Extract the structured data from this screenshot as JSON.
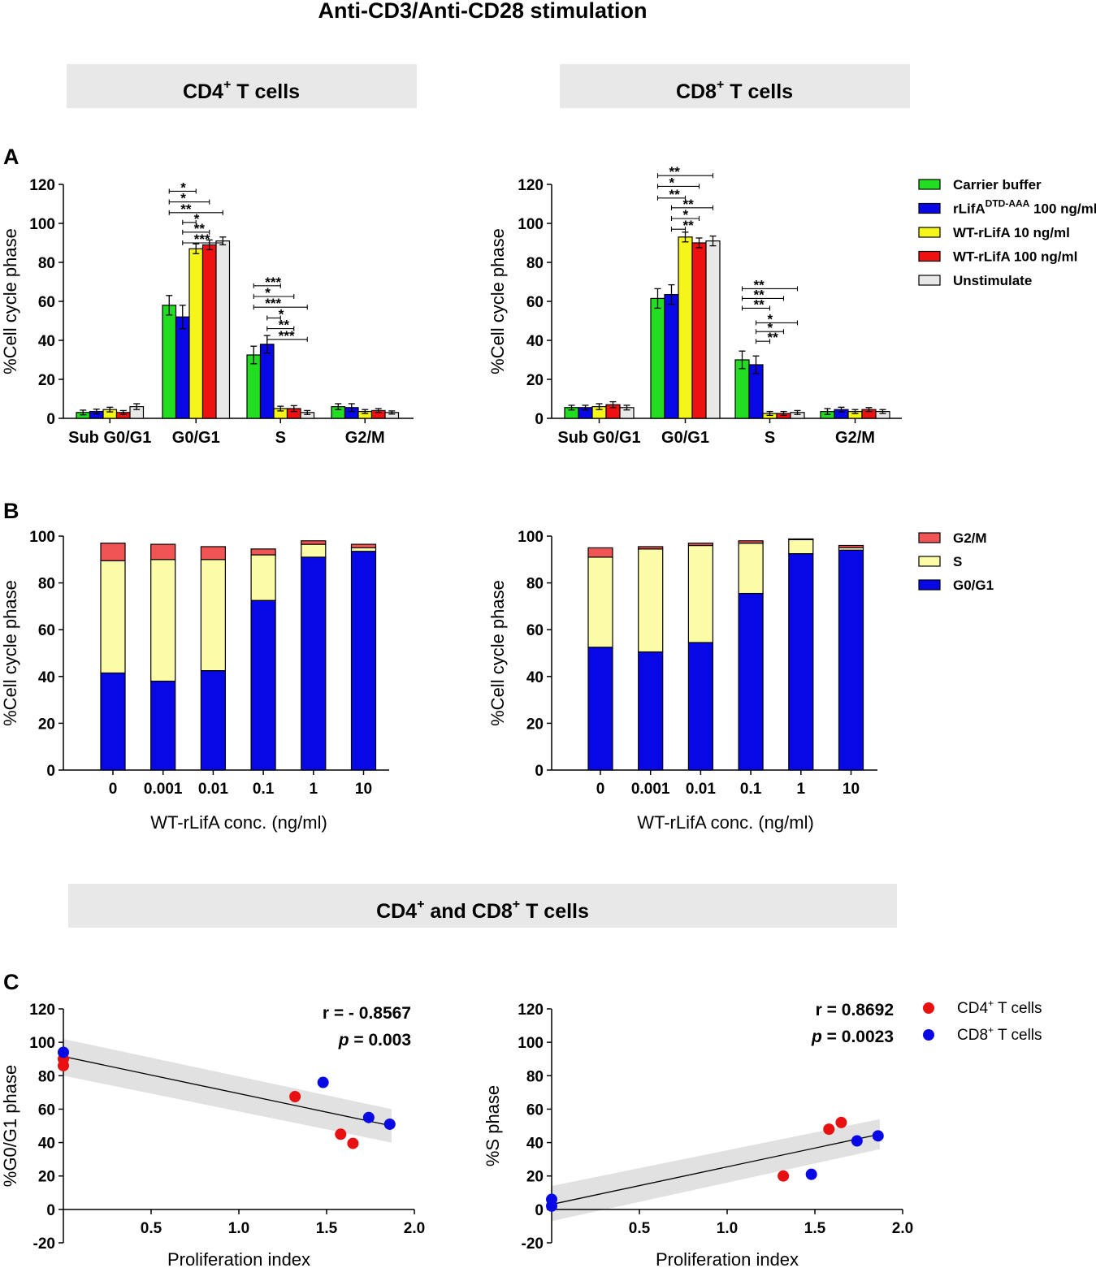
{
  "figure": {
    "main_title": "Anti-CD3/Anti-CD28 stimulation",
    "headers": {
      "cd4": {
        "main": "CD4",
        "sup": "+",
        "rest": " T cells"
      },
      "cd8": {
        "main": "CD8",
        "sup": "+",
        "rest": " T cells"
      },
      "both": {
        "a": "CD4",
        "sup1": "+",
        "b": " and CD8",
        "sup2": "+",
        "c": " T cells"
      }
    },
    "panel_letters": [
      "A",
      "B",
      "C"
    ],
    "colors": {
      "green": "#22dd22",
      "blue": "#0808e6",
      "yellow": "#f5f51a",
      "red": "#ee1111",
      "light_gray": "#e8e8e8",
      "header_bg": "#e8e8e8",
      "stack_red": "#f05454",
      "stack_yellow": "#fbfba8",
      "scatter_red": "#e81010"
    }
  },
  "chart_data": [
    {
      "id": "A-CD4",
      "type": "bar",
      "ylabel": "%Cell cycle phase",
      "ylim": [
        0,
        120
      ],
      "yticks": [
        0,
        20,
        40,
        60,
        80,
        100,
        120
      ],
      "categories": [
        "Sub G0/G1",
        "G0/G1",
        "S",
        "G2/M"
      ],
      "series": [
        {
          "name": "Carrier buffer",
          "values": [
            3,
            58,
            32.5,
            6
          ],
          "errors": [
            1.2,
            5,
            4.5,
            1.5
          ]
        },
        {
          "name": "rLifA DTD-AAA 100 ng/ml",
          "values": [
            3.5,
            52,
            38,
            5.5
          ],
          "errors": [
            1.2,
            6,
            4.5,
            2
          ]
        },
        {
          "name": "WT-rLifA 10 ng/ml",
          "values": [
            4.5,
            87,
            5,
            3.5
          ],
          "errors": [
            1.2,
            2.5,
            1.2,
            1
          ]
        },
        {
          "name": "WT-rLifA 100 ng/ml",
          "values": [
            3,
            89,
            5,
            4
          ],
          "errors": [
            1,
            2.5,
            1.5,
            1
          ]
        },
        {
          "name": "Unstimulate",
          "values": [
            6,
            91,
            3,
            3
          ],
          "errors": [
            1.5,
            2,
            1,
            0.8
          ]
        }
      ],
      "significance": [
        {
          "category": 1,
          "from": 0,
          "to": 2,
          "label": "*",
          "level": 116.5
        },
        {
          "category": 1,
          "from": 0,
          "to": 3,
          "label": "*",
          "level": 111
        },
        {
          "category": 1,
          "from": 0,
          "to": 4,
          "label": "**",
          "level": 105.5
        },
        {
          "category": 1,
          "from": 1,
          "to": 2,
          "label": "*",
          "level": 100.5
        },
        {
          "category": 1,
          "from": 1,
          "to": 3,
          "label": "**",
          "level": 95.5
        },
        {
          "category": 1,
          "from": 1,
          "to": 4,
          "label": "***",
          "level": 90
        },
        {
          "category": 2,
          "from": 0,
          "to": 2,
          "label": "***",
          "level": 68
        },
        {
          "category": 2,
          "from": 0,
          "to": 3,
          "label": "*",
          "level": 62.5
        },
        {
          "category": 2,
          "from": 0,
          "to": 4,
          "label": "***",
          "level": 57
        },
        {
          "category": 2,
          "from": 1,
          "to": 2,
          "label": "*",
          "level": 51.5
        },
        {
          "category": 2,
          "from": 1,
          "to": 3,
          "label": "**",
          "level": 46
        },
        {
          "category": 2,
          "from": 1,
          "to": 4,
          "label": "***",
          "level": 40.5
        }
      ]
    },
    {
      "id": "A-CD8",
      "type": "bar",
      "ylabel": "%Cell cycle phase",
      "ylim": [
        0,
        120
      ],
      "yticks": [
        0,
        20,
        40,
        60,
        80,
        100,
        120
      ],
      "categories": [
        "Sub G0/G1",
        "G0/G1",
        "S",
        "G2/M"
      ],
      "series": [
        {
          "name": "Carrier buffer",
          "values": [
            5.5,
            61.5,
            30,
            3.5
          ],
          "errors": [
            1.2,
            5,
            4.5,
            1.5
          ]
        },
        {
          "name": "rLifA DTD-AAA 100 ng/ml",
          "values": [
            5.5,
            63.5,
            27.5,
            4.5
          ],
          "errors": [
            1.2,
            5,
            4.5,
            1.2
          ]
        },
        {
          "name": "WT-rLifA 10 ng/ml",
          "values": [
            6,
            93,
            2.5,
            3.5
          ],
          "errors": [
            1.5,
            2.5,
            1,
            1
          ]
        },
        {
          "name": "WT-rLifA 100 ng/ml",
          "values": [
            7,
            90,
            2.5,
            4.5
          ],
          "errors": [
            1.5,
            2.5,
            1,
            1
          ]
        },
        {
          "name": "Unstimulate",
          "values": [
            5.5,
            91,
            3,
            3.5
          ],
          "errors": [
            1.2,
            2.5,
            1,
            1
          ]
        }
      ],
      "significance": [
        {
          "category": 1,
          "from": 0,
          "to": 4,
          "label": "**",
          "level": 124.5
        },
        {
          "category": 1,
          "from": 0,
          "to": 3,
          "label": "*",
          "level": 119
        },
        {
          "category": 1,
          "from": 0,
          "to": 2,
          "label": "**",
          "level": 113
        },
        {
          "category": 1,
          "from": 1,
          "to": 4,
          "label": "**",
          "level": 108
        },
        {
          "category": 1,
          "from": 1,
          "to": 3,
          "label": "*",
          "level": 102.5
        },
        {
          "category": 1,
          "from": 1,
          "to": 2,
          "label": "**",
          "level": 97
        },
        {
          "category": 2,
          "from": 0,
          "to": 4,
          "label": "**",
          "level": 66.5
        },
        {
          "category": 2,
          "from": 0,
          "to": 3,
          "label": "**",
          "level": 61.5
        },
        {
          "category": 2,
          "from": 0,
          "to": 2,
          "label": "**",
          "level": 56.5
        },
        {
          "category": 2,
          "from": 1,
          "to": 4,
          "label": "*",
          "level": 49
        },
        {
          "category": 2,
          "from": 1,
          "to": 3,
          "label": "*",
          "level": 44.5
        },
        {
          "category": 2,
          "from": 1,
          "to": 2,
          "label": "**",
          "level": 39.5
        }
      ]
    },
    {
      "id": "B-CD4",
      "type": "bar",
      "stacked": true,
      "ylabel": "%Cell cycle phase",
      "xlabel": "WT-rLifA conc. (ng/ml)",
      "ylim": [
        0,
        100
      ],
      "yticks": [
        0,
        20,
        40,
        60,
        80,
        100
      ],
      "categories": [
        "0",
        "0.001",
        "0.01",
        "0.1",
        "1",
        "10"
      ],
      "series": [
        {
          "name": "G0/G1",
          "values": [
            41.5,
            38,
            42.5,
            72.5,
            91,
            93.5
          ]
        },
        {
          "name": "S",
          "values": [
            48,
            52,
            47.5,
            19.5,
            5.5,
            1.5
          ]
        },
        {
          "name": "G2/M",
          "values": [
            7.5,
            6.5,
            5.5,
            2.5,
            1.5,
            1.5
          ]
        }
      ]
    },
    {
      "id": "B-CD8",
      "type": "bar",
      "stacked": true,
      "ylabel": "%Cell cycle phase",
      "xlabel": "WT-rLifA conc. (ng/ml)",
      "ylim": [
        0,
        100
      ],
      "yticks": [
        0,
        20,
        40,
        60,
        80,
        100
      ],
      "categories": [
        "0",
        "0.001",
        "0.01",
        "0.1",
        "1",
        "10"
      ],
      "series": [
        {
          "name": "G0/G1",
          "values": [
            52.5,
            50.5,
            54.5,
            75.5,
            92.5,
            94
          ]
        },
        {
          "name": "S",
          "values": [
            38.5,
            44,
            41.5,
            21.5,
            6,
            1
          ]
        },
        {
          "name": "G2/M",
          "values": [
            4,
            1,
            1,
            1,
            0.3,
            1
          ]
        }
      ]
    },
    {
      "id": "C-G0G1",
      "type": "scatter",
      "ylabel": "%G0/G1 phase",
      "xlabel": "Proliferation index",
      "xlim": [
        0,
        2
      ],
      "ylim": [
        -20,
        120
      ],
      "xticks": [
        "0.5",
        "1.0",
        "1.5",
        "2.0"
      ],
      "yticks": [
        -20,
        0,
        20,
        40,
        60,
        80,
        100,
        120
      ],
      "stats": {
        "r": "r = - 0.8567",
        "p_label": "p",
        "p_value": " = 0.003"
      },
      "series": [
        {
          "name": "CD4+ T cells",
          "points": [
            [
              0,
              86
            ],
            [
              0,
              90
            ],
            [
              1.32,
              67.5
            ],
            [
              1.58,
              45
            ],
            [
              1.65,
              39.5
            ]
          ]
        },
        {
          "name": "CD8+ T cells",
          "points": [
            [
              0,
              94
            ],
            [
              1.48,
              76
            ],
            [
              1.74,
              55
            ],
            [
              1.86,
              51
            ]
          ]
        }
      ],
      "fit": {
        "x0": 0,
        "y0": 91.5,
        "x1": 1.87,
        "y1": 50
      },
      "band": {
        "x0": 0,
        "lo0": 80,
        "hi0": 102,
        "x1": 1.87,
        "lo1": 40,
        "hi1": 60
      }
    },
    {
      "id": "C-S",
      "type": "scatter",
      "ylabel": "%S phase",
      "xlabel": "Proliferation index",
      "xlim": [
        0,
        2
      ],
      "ylim": [
        -20,
        120
      ],
      "xticks": [
        "0.5",
        "1.0",
        "1.5",
        "2.0"
      ],
      "yticks": [
        -20,
        0,
        20,
        40,
        60,
        80,
        100,
        120
      ],
      "stats": {
        "r": "r = 0.8692",
        "p_label": "p",
        "p_value": " = 0.0023"
      },
      "series": [
        {
          "name": "CD4+ T cells",
          "points": [
            [
              1.32,
              20
            ],
            [
              1.58,
              48
            ],
            [
              1.65,
              52
            ]
          ]
        },
        {
          "name": "CD8+ T cells",
          "points": [
            [
              0,
              2
            ],
            [
              0,
              6
            ],
            [
              1.48,
              21
            ],
            [
              1.74,
              41
            ],
            [
              1.86,
              44
            ]
          ]
        }
      ],
      "fit": {
        "x0": 0,
        "y0": 3,
        "x1": 1.87,
        "y1": 45
      },
      "band": {
        "x0": 0,
        "lo0": -7,
        "hi0": 14,
        "x1": 1.87,
        "lo1": 36,
        "hi1": 54
      }
    }
  ],
  "legends": {
    "A": [
      {
        "label": "Carrier buffer",
        "color": "#22dd22"
      },
      {
        "label_main": "rLifA",
        "label_sup": "DTD-AAA",
        "label_rest": " 100 ng/ml",
        "color": "#0808e6"
      },
      {
        "label": "WT-rLifA 10 ng/ml",
        "color": "#f5f51a"
      },
      {
        "label": "WT-rLifA 100 ng/ml",
        "color": "#ee1111"
      },
      {
        "label": "Unstimulate",
        "color": "#e8e8e8"
      }
    ],
    "B": [
      {
        "label": "G2/M",
        "color": "#f05454"
      },
      {
        "label": "S",
        "color": "#fbfba8"
      },
      {
        "label": "G0/G1",
        "color": "#0808e6"
      }
    ],
    "C": [
      {
        "label_main": "CD4",
        "label_sup": "+",
        "label_rest": " T cells",
        "color": "#e81010"
      },
      {
        "label_main": "CD8",
        "label_sup": "+",
        "label_rest": " T cells",
        "color": "#0808e6"
      }
    ]
  }
}
